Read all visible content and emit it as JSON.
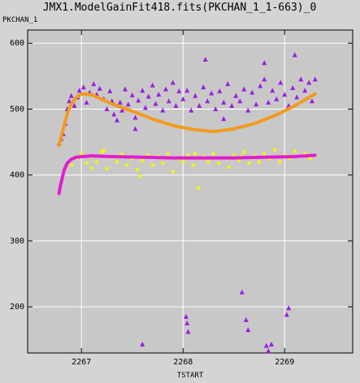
{
  "window_title": "JMX1.ModelGainFit418.fits(PKCHAN_1_1-663)_0",
  "colors": {
    "background": "#d4d4d4",
    "plot_background": "#c8c8c8",
    "grid": "#ffffff",
    "purple_triangles": "#9a1ee0",
    "orange_fit": "#f29a1e",
    "yellow_points": "#f2f21a",
    "magenta_fit": "#e21ccf"
  },
  "chart_data": {
    "type": "scatter",
    "title": "JMX1.ModelGainFit418.fits(PKCHAN_1_1-663)_0",
    "xlabel": "TSTART",
    "ylabel": "PKCHAN_1",
    "xlim": [
      2266.47,
      2269.67
    ],
    "ylim": [
      130,
      620
    ],
    "x_ticks": [
      2267,
      2268,
      2269
    ],
    "y_ticks": [
      200,
      300,
      400,
      500,
      600
    ],
    "grid": true,
    "series": [
      {
        "marker": "triangle",
        "color": "#9a1ee0",
        "points": [
          [
            2266.78,
            448
          ],
          [
            2266.8,
            455
          ],
          [
            2266.82,
            462
          ],
          [
            2266.84,
            478
          ],
          [
            2266.86,
            500
          ],
          [
            2266.88,
            512
          ],
          [
            2266.9,
            520
          ],
          [
            2266.93,
            505
          ],
          [
            2266.96,
            518
          ],
          [
            2266.98,
            528
          ],
          [
            2267.02,
            533
          ],
          [
            2267.05,
            510
          ],
          [
            2267.08,
            525
          ],
          [
            2267.12,
            538
          ],
          [
            2267.15,
            522
          ],
          [
            2267.18,
            531
          ],
          [
            2267.22,
            515
          ],
          [
            2267.25,
            500
          ],
          [
            2267.28,
            527
          ],
          [
            2267.3,
            512
          ],
          [
            2267.32,
            492
          ],
          [
            2267.35,
            483
          ],
          [
            2267.38,
            510
          ],
          [
            2267.4,
            498
          ],
          [
            2267.43,
            530
          ],
          [
            2267.46,
            507
          ],
          [
            2267.5,
            521
          ],
          [
            2267.53,
            487
          ],
          [
            2267.56,
            513
          ],
          [
            2267.6,
            528
          ],
          [
            2267.63,
            502
          ],
          [
            2267.66,
            519
          ],
          [
            2267.7,
            536
          ],
          [
            2267.73,
            508
          ],
          [
            2267.76,
            522
          ],
          [
            2267.8,
            498
          ],
          [
            2267.83,
            530
          ],
          [
            2267.86,
            512
          ],
          [
            2267.9,
            540
          ],
          [
            2267.93,
            505
          ],
          [
            2267.96,
            527
          ],
          [
            2268.0,
            515
          ],
          [
            2268.04,
            528
          ],
          [
            2268.08,
            498
          ],
          [
            2268.12,
            520
          ],
          [
            2268.16,
            505
          ],
          [
            2268.2,
            533
          ],
          [
            2268.24,
            512
          ],
          [
            2268.28,
            524
          ],
          [
            2268.32,
            500
          ],
          [
            2268.36,
            527
          ],
          [
            2268.4,
            510
          ],
          [
            2268.44,
            538
          ],
          [
            2268.48,
            505
          ],
          [
            2268.52,
            520
          ],
          [
            2268.56,
            512
          ],
          [
            2268.6,
            530
          ],
          [
            2268.64,
            498
          ],
          [
            2268.68,
            525
          ],
          [
            2268.72,
            507
          ],
          [
            2268.76,
            535
          ],
          [
            2268.8,
            545
          ],
          [
            2268.84,
            510
          ],
          [
            2268.88,
            528
          ],
          [
            2268.92,
            515
          ],
          [
            2268.96,
            540
          ],
          [
            2269.0,
            522
          ],
          [
            2269.04,
            505
          ],
          [
            2269.08,
            532
          ],
          [
            2269.12,
            518
          ],
          [
            2269.16,
            545
          ],
          [
            2269.2,
            528
          ],
          [
            2269.24,
            540
          ],
          [
            2269.27,
            512
          ],
          [
            2269.3,
            545
          ],
          [
            2267.6,
            143
          ],
          [
            2268.03,
            185
          ],
          [
            2268.04,
            175
          ],
          [
            2268.05,
            162
          ],
          [
            2268.22,
            575
          ],
          [
            2268.58,
            222
          ],
          [
            2268.62,
            180
          ],
          [
            2268.64,
            165
          ],
          [
            2268.82,
            141
          ],
          [
            2268.84,
            133
          ],
          [
            2268.87,
            143
          ],
          [
            2268.8,
            570
          ],
          [
            2269.04,
            198
          ],
          [
            2269.02,
            188
          ],
          [
            2269.1,
            582
          ],
          [
            2267.53,
            470
          ],
          [
            2268.4,
            485
          ]
        ]
      },
      {
        "marker": "square",
        "color": "#f2f21a",
        "points": [
          [
            2266.9,
            415
          ],
          [
            2266.95,
            425
          ],
          [
            2267.0,
            432
          ],
          [
            2267.05,
            418
          ],
          [
            2267.1,
            428
          ],
          [
            2267.15,
            420
          ],
          [
            2267.2,
            435
          ],
          [
            2267.25,
            410
          ],
          [
            2267.3,
            427
          ],
          [
            2267.35,
            420
          ],
          [
            2267.4,
            432
          ],
          [
            2267.45,
            415
          ],
          [
            2267.5,
            425
          ],
          [
            2267.55,
            408
          ],
          [
            2267.6,
            422
          ],
          [
            2267.65,
            430
          ],
          [
            2267.7,
            415
          ],
          [
            2267.75,
            428
          ],
          [
            2267.8,
            418
          ],
          [
            2267.85,
            432
          ],
          [
            2267.9,
            405
          ],
          [
            2267.95,
            425
          ],
          [
            2268.0,
            420
          ],
          [
            2268.05,
            430
          ],
          [
            2268.1,
            415
          ],
          [
            2268.15,
            380
          ],
          [
            2268.2,
            428
          ],
          [
            2268.25,
            420
          ],
          [
            2268.3,
            432
          ],
          [
            2268.35,
            418
          ],
          [
            2268.4,
            426
          ],
          [
            2268.45,
            412
          ],
          [
            2268.5,
            430
          ],
          [
            2268.55,
            422
          ],
          [
            2268.6,
            435
          ],
          [
            2268.65,
            418
          ],
          [
            2268.7,
            428
          ],
          [
            2268.75,
            420
          ],
          [
            2268.8,
            432
          ],
          [
            2268.85,
            425
          ],
          [
            2268.9,
            438
          ],
          [
            2268.95,
            420
          ],
          [
            2269.0,
            430
          ],
          [
            2269.05,
            425
          ],
          [
            2269.1,
            436
          ],
          [
            2269.15,
            428
          ],
          [
            2269.2,
            432
          ],
          [
            2269.25,
            425
          ],
          [
            2269.3,
            430
          ],
          [
            2267.22,
            437
          ],
          [
            2267.58,
            398
          ],
          [
            2267.1,
            410
          ],
          [
            2268.12,
            432
          ],
          [
            2268.58,
            428
          ]
        ]
      },
      {
        "type": "line",
        "color": "#f29a1e",
        "x": [
          2266.78,
          2266.8,
          2266.83,
          2266.86,
          2266.9,
          2266.95,
          2267.0,
          2267.1,
          2267.2,
          2267.3,
          2267.5,
          2267.7,
          2267.9,
          2268.1,
          2268.3,
          2268.5,
          2268.7,
          2268.9,
          2269.1,
          2269.3
        ],
        "values": [
          445,
          458,
          475,
          493,
          508,
          518,
          523,
          522,
          515,
          508,
          497,
          485,
          475,
          469,
          466,
          470,
          478,
          490,
          505,
          523
        ]
      },
      {
        "type": "line",
        "color": "#e21ccf",
        "x": [
          2266.78,
          2266.79,
          2266.81,
          2266.83,
          2266.86,
          2266.9,
          2266.95,
          2267.0,
          2267.1,
          2267.3,
          2267.6,
          2267.9,
          2268.2,
          2268.5,
          2268.8,
          2269.1,
          2269.3
        ],
        "values": [
          372,
          382,
          395,
          408,
          418,
          424,
          427,
          428,
          429,
          428,
          427,
          426,
          426,
          426,
          427,
          428,
          430
        ]
      }
    ]
  }
}
